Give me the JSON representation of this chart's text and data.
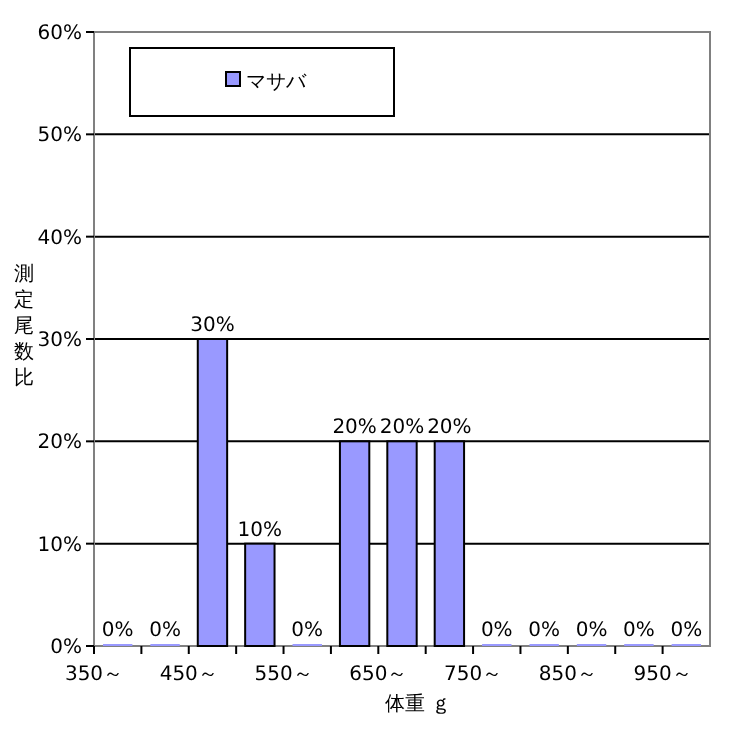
{
  "chart_data": {
    "type": "bar",
    "xlabel": "体重 ｇ",
    "ylabel": "測定尾数比",
    "categories": [
      "350～",
      null,
      "450～",
      null,
      "550～",
      null,
      "650～",
      null,
      "750～",
      null,
      "850～",
      null,
      "950～"
    ],
    "series": [
      {
        "name": "マサバ",
        "color": "#9999ff",
        "values": [
          0,
          0,
          30,
          10,
          0,
          20,
          20,
          20,
          0,
          0,
          0,
          0,
          0
        ],
        "value_labels": [
          "0%",
          "0%",
          "30%",
          "10%",
          "0%",
          "20%",
          "20%",
          "20%",
          "0%",
          "0%",
          "0%",
          "0%",
          "0%"
        ]
      }
    ],
    "ylim": [
      0,
      60
    ],
    "yticks": [
      {
        "value": 0,
        "label": "0%"
      },
      {
        "value": 10,
        "label": "10%"
      },
      {
        "value": 20,
        "label": "20%"
      },
      {
        "value": 30,
        "label": "30%"
      },
      {
        "value": 40,
        "label": "40%"
      },
      {
        "value": 50,
        "label": "50%"
      },
      {
        "value": 60,
        "label": "60%"
      }
    ],
    "grid": "y",
    "legend": "top left"
  }
}
